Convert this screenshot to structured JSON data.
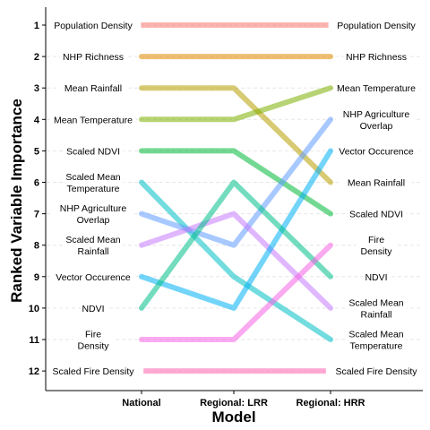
{
  "chart_data": {
    "type": "line",
    "xlabel": "Model",
    "ylabel": "Ranked Variable Importance",
    "categories": [
      "National",
      "Regional: LRR",
      "Regional: HRR"
    ],
    "ylim": [
      1,
      12
    ],
    "y_reversed": true,
    "y_ticks": [
      "1",
      "2",
      "3",
      "4",
      "5",
      "6",
      "7",
      "8",
      "9",
      "10",
      "11",
      "12"
    ],
    "left_labels": [
      {
        "rank": 1,
        "lines": [
          "Population Density"
        ]
      },
      {
        "rank": 2,
        "lines": [
          "NHP Richness"
        ]
      },
      {
        "rank": 3,
        "lines": [
          "Mean Rainfall"
        ]
      },
      {
        "rank": 4,
        "lines": [
          "Mean Temperature"
        ]
      },
      {
        "rank": 5,
        "lines": [
          "Scaled NDVI"
        ]
      },
      {
        "rank": 6,
        "lines": [
          "Scaled Mean",
          "Temperature"
        ]
      },
      {
        "rank": 7,
        "lines": [
          "NHP Agriculture",
          "Overlap"
        ]
      },
      {
        "rank": 8,
        "lines": [
          "Scaled Mean",
          "Rainfall"
        ]
      },
      {
        "rank": 9,
        "lines": [
          "Vector Occurence"
        ]
      },
      {
        "rank": 10,
        "lines": [
          "NDVI"
        ]
      },
      {
        "rank": 11,
        "lines": [
          "Fire",
          "Density"
        ]
      },
      {
        "rank": 12,
        "lines": [
          "Scaled Fire Density"
        ]
      }
    ],
    "right_labels": [
      {
        "rank": 1,
        "lines": [
          "Population Density"
        ]
      },
      {
        "rank": 2,
        "lines": [
          "NHP Richness"
        ]
      },
      {
        "rank": 3,
        "lines": [
          "Mean Temperature"
        ]
      },
      {
        "rank": 4,
        "lines": [
          "NHP Agriculture",
          "Overlap"
        ]
      },
      {
        "rank": 5,
        "lines": [
          "Vector Occurence"
        ]
      },
      {
        "rank": 6,
        "lines": [
          "Mean Rainfall"
        ]
      },
      {
        "rank": 7,
        "lines": [
          "Scaled NDVI"
        ]
      },
      {
        "rank": 8,
        "lines": [
          "Fire",
          "Density"
        ]
      },
      {
        "rank": 9,
        "lines": [
          "NDVI"
        ]
      },
      {
        "rank": 10,
        "lines": [
          "Scaled Mean",
          "Rainfall"
        ]
      },
      {
        "rank": 11,
        "lines": [
          "Scaled Mean",
          "Temperature"
        ]
      },
      {
        "rank": 12,
        "lines": [
          "Scaled Fire Density"
        ]
      }
    ],
    "series": [
      {
        "key": "population-density",
        "values": [
          1,
          1,
          1
        ],
        "color": "#F8766D"
      },
      {
        "key": "nhp-richness",
        "values": [
          2,
          2,
          2
        ],
        "color": "#E08B00"
      },
      {
        "key": "mean-rainfall",
        "values": [
          3,
          3,
          6
        ],
        "color": "#B79F00"
      },
      {
        "key": "mean-temperature",
        "values": [
          4,
          4,
          3
        ],
        "color": "#7CAE00"
      },
      {
        "key": "scaled-ndvi",
        "values": [
          5,
          5,
          7
        ],
        "color": "#00BA38"
      },
      {
        "key": "scaled-mean-temperature",
        "values": [
          6,
          9,
          11
        ],
        "color": "#00BFC4"
      },
      {
        "key": "nhp-agriculture-overlap",
        "values": [
          7,
          8,
          4
        ],
        "color": "#619CFF"
      },
      {
        "key": "scaled-mean-rainfall",
        "values": [
          8,
          7,
          10
        ],
        "color": "#C77CFF"
      },
      {
        "key": "vector-occurence",
        "values": [
          9,
          10,
          5
        ],
        "color": "#00B0F6"
      },
      {
        "key": "ndvi",
        "values": [
          10,
          6,
          9
        ],
        "color": "#00C08B"
      },
      {
        "key": "fire-density",
        "values": [
          11,
          11,
          8
        ],
        "color": "#F564E3"
      },
      {
        "key": "scaled-fire-density",
        "values": [
          12,
          12,
          12
        ],
        "color": "#FF64B0"
      }
    ],
    "grid": true,
    "legend": "none"
  }
}
